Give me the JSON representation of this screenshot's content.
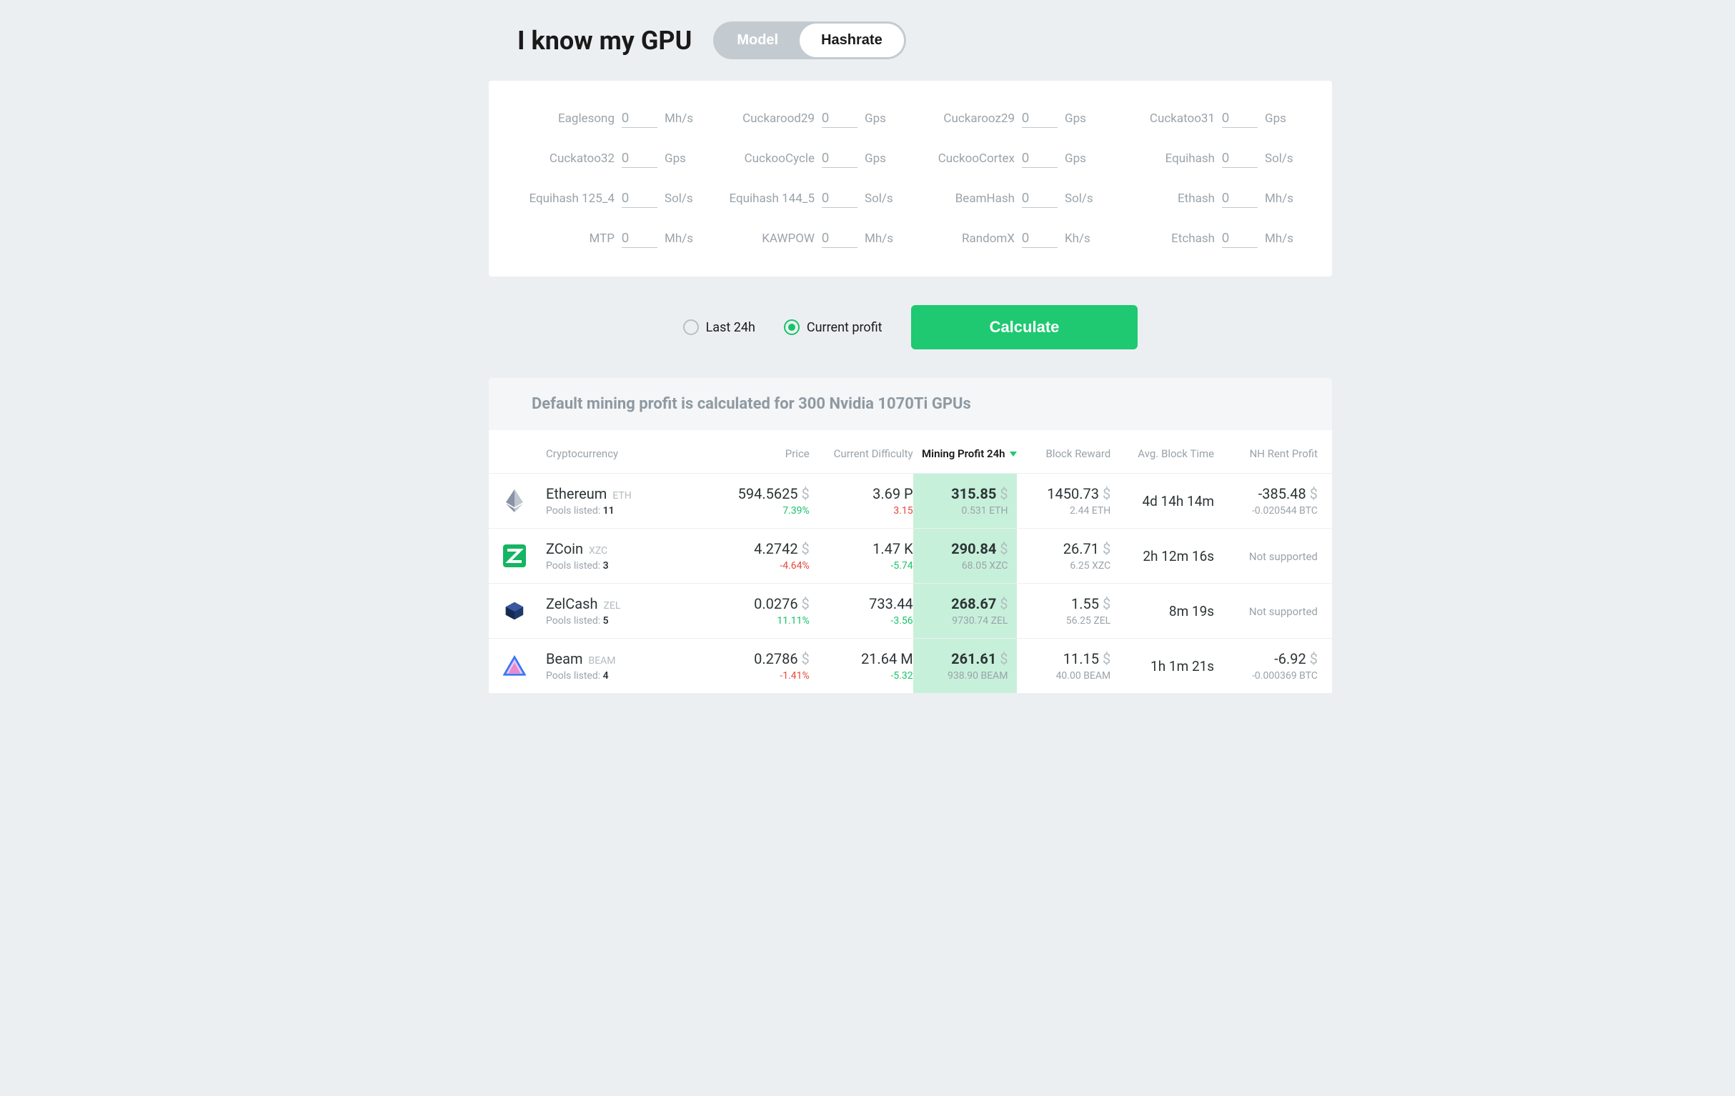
{
  "colors": {
    "page_bg": "#eceff1",
    "accent_green": "#1ec971",
    "text_grey": "#9aa3aa",
    "profit_bg": "#c7f0db",
    "red": "#e8463a"
  },
  "header": {
    "title": "I know my GPU",
    "toggle": {
      "model": "Model",
      "hashrate": "Hashrate",
      "active": "hashrate"
    }
  },
  "hashrate_inputs": [
    {
      "label": "Eaglesong",
      "value": "0",
      "unit": "Mh/s"
    },
    {
      "label": "Cuckarood29",
      "value": "0",
      "unit": "Gps"
    },
    {
      "label": "Cuckarooz29",
      "value": "0",
      "unit": "Gps"
    },
    {
      "label": "Cuckatoo31",
      "value": "0",
      "unit": "Gps"
    },
    {
      "label": "Cuckatoo32",
      "value": "0",
      "unit": "Gps"
    },
    {
      "label": "CuckooCycle",
      "value": "0",
      "unit": "Gps"
    },
    {
      "label": "CuckooCortex",
      "value": "0",
      "unit": "Gps"
    },
    {
      "label": "Equihash",
      "value": "0",
      "unit": "Sol/s"
    },
    {
      "label": "Equihash 125_4",
      "value": "0",
      "unit": "Sol/s"
    },
    {
      "label": "Equihash 144_5",
      "value": "0",
      "unit": "Sol/s"
    },
    {
      "label": "BeamHash",
      "value": "0",
      "unit": "Sol/s"
    },
    {
      "label": "Ethash",
      "value": "0",
      "unit": "Mh/s"
    },
    {
      "label": "MTP",
      "value": "0",
      "unit": "Mh/s"
    },
    {
      "label": "KAWPOW",
      "value": "0",
      "unit": "Mh/s"
    },
    {
      "label": "RandomX",
      "value": "0",
      "unit": "Kh/s"
    },
    {
      "label": "Etchash",
      "value": "0",
      "unit": "Mh/s"
    }
  ],
  "period_radios": {
    "last24h": "Last 24h",
    "current": "Current profit",
    "selected": "current"
  },
  "calculate_label": "Calculate",
  "banner": "Default mining profit is calculated for 300 Nvidia 1070Ti GPUs",
  "table": {
    "headers": {
      "crypto": "Cryptocurrency",
      "price": "Price",
      "difficulty": "Current Difficulty",
      "profit": "Mining Profit 24h",
      "reward": "Block Reward",
      "blocktime": "Avg. Block Time",
      "nhrent": "NH Rent Profit"
    },
    "pools_label": "Pools listed: ",
    "rows": [
      {
        "name": "Ethereum",
        "sym": "ETH",
        "pools": "11",
        "icon": {
          "type": "eth",
          "color": "#8a92a5"
        },
        "price": "594.5625",
        "price_cur": "$",
        "price_delta": "7.39%",
        "price_dir": "up",
        "diff": "3.69 P",
        "diff_delta": "3.15",
        "diff_dir": "down",
        "profit": "315.85",
        "profit_cur": "$",
        "profit_sub": "0.531 ETH",
        "reward": "1450.73",
        "reward_cur": "$",
        "reward_sub": "2.44 ETH",
        "blocktime": "4d 14h 14m",
        "nh": "-385.48",
        "nh_cur": "$",
        "nh_sub": "-0.020544 BTC"
      },
      {
        "name": "ZCoin",
        "sym": "XZC",
        "pools": "3",
        "icon": {
          "type": "z",
          "color": "#15b562"
        },
        "price": "4.2742",
        "price_cur": "$",
        "price_delta": "-4.64%",
        "price_dir": "down",
        "diff": "1.47 K",
        "diff_delta": "-5.74",
        "diff_dir": "up",
        "profit": "290.84",
        "profit_cur": "$",
        "profit_sub": "68.05 XZC",
        "reward": "26.71",
        "reward_cur": "$",
        "reward_sub": "6.25 XZC",
        "blocktime": "2h 12m 16s",
        "nh_unsupported": "Not supported"
      },
      {
        "name": "ZelCash",
        "sym": "ZEL",
        "pools": "5",
        "icon": {
          "type": "cube",
          "color": "#1d3a6d"
        },
        "price": "0.0276",
        "price_cur": "$",
        "price_delta": "11.11%",
        "price_dir": "up",
        "diff": "733.44",
        "diff_delta": "-3.56",
        "diff_dir": "up",
        "profit": "268.67",
        "profit_cur": "$",
        "profit_sub": "9730.74 ZEL",
        "reward": "1.55",
        "reward_cur": "$",
        "reward_sub": "56.25 ZEL",
        "blocktime": "8m 19s",
        "nh_unsupported": "Not supported"
      },
      {
        "name": "Beam",
        "sym": "BEAM",
        "pools": "4",
        "icon": {
          "type": "beam",
          "color": "#2d7bf4"
        },
        "price": "0.2786",
        "price_cur": "$",
        "price_delta": "-1.41%",
        "price_dir": "down",
        "diff": "21.64 M",
        "diff_delta": "-5.32",
        "diff_dir": "up",
        "profit": "261.61",
        "profit_cur": "$",
        "profit_sub": "938.90 BEAM",
        "reward": "11.15",
        "reward_cur": "$",
        "reward_sub": "40.00 BEAM",
        "blocktime": "1h 1m 21s",
        "nh": "-6.92",
        "nh_cur": "$",
        "nh_sub": "-0.000369 BTC"
      }
    ]
  }
}
